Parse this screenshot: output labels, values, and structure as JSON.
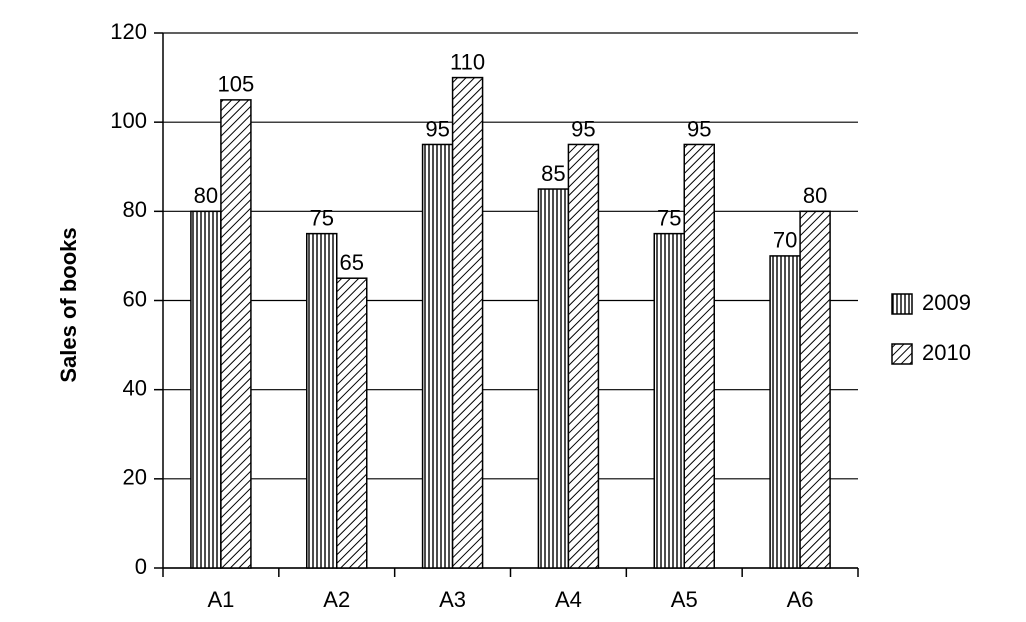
{
  "chart_data": {
    "type": "bar",
    "y_label": "Sales of books",
    "categories": [
      "A1",
      "A2",
      "A3",
      "A4",
      "A5",
      "A6"
    ],
    "series": [
      {
        "name": "2009",
        "color": "#000000",
        "pattern": "vertical",
        "values": [
          80,
          75,
          95,
          85,
          75,
          70
        ]
      },
      {
        "name": "2010",
        "color": "#000000",
        "pattern": "diagonal",
        "values": [
          105,
          65,
          110,
          95,
          95,
          80
        ]
      }
    ],
    "ylim": [
      0,
      120
    ],
    "yticks": [
      0,
      20,
      40,
      60,
      80,
      100,
      120
    ],
    "grid": true,
    "legend": "right"
  }
}
